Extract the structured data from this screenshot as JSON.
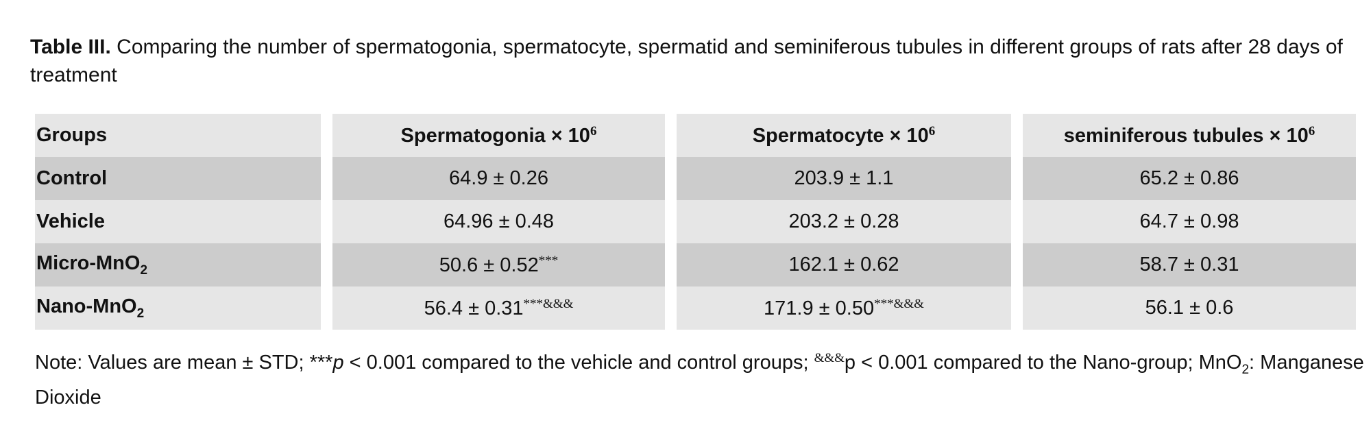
{
  "title": [
    {
      "text": "Table III.",
      "style": "bold"
    },
    {
      "text": " Comparing the number of spermatogonia, spermatocyte, spermatid and seminiferous tubules in different groups of rats after 28 days of treatment"
    }
  ],
  "table": {
    "header": [
      [
        {
          "text": "Groups"
        }
      ],
      [
        {
          "text": "Spermatogonia × 10"
        },
        {
          "text": "6",
          "style": "sup"
        }
      ],
      [
        {
          "text": "Spermatocyte × 10"
        },
        {
          "text": "6",
          "style": "sup"
        }
      ],
      [
        {
          "text": "seminiferous tubules × 10"
        },
        {
          "text": "6",
          "style": "sup"
        }
      ]
    ],
    "rows": [
      [
        [
          {
            "text": "Control"
          }
        ],
        [
          {
            "text": "64.9 ± 0.26"
          }
        ],
        [
          {
            "text": "203.9 ± 1.1"
          }
        ],
        [
          {
            "text": "65.2 ± 0.86"
          }
        ]
      ],
      [
        [
          {
            "text": "Vehicle"
          }
        ],
        [
          {
            "text": "64.96 ± 0.48"
          }
        ],
        [
          {
            "text": "203.2 ± 0.28"
          }
        ],
        [
          {
            "text": "64.7 ± 0.98"
          }
        ]
      ],
      [
        [
          {
            "text": "Micro-MnO"
          },
          {
            "text": "2",
            "style": "sub"
          }
        ],
        [
          {
            "text": "50.6 ± 0.52"
          },
          {
            "text": "***",
            "style": "sup"
          }
        ],
        [
          {
            "text": "162.1 ± 0.62"
          }
        ],
        [
          {
            "text": "58.7 ± 0.31"
          }
        ]
      ],
      [
        [
          {
            "text": "Nano-MnO"
          },
          {
            "text": "2",
            "style": "sub"
          }
        ],
        [
          {
            "text": "56.4 ± 0.31"
          },
          {
            "text": "***&&&",
            "style": "sup"
          }
        ],
        [
          {
            "text": "171.9 ± 0.50"
          },
          {
            "text": "***&&&",
            "style": "sup"
          }
        ],
        [
          {
            "text": "56.1 ± 0.6"
          }
        ]
      ]
    ]
  },
  "note": [
    {
      "text": "Note: Values are mean ± STD; ***"
    },
    {
      "text": "p",
      "style": "italic"
    },
    {
      "text": " < 0.001 compared to the vehicle and control groups; "
    },
    {
      "text": "&&&",
      "style": "sup"
    },
    {
      "text": "p < 0.001 compared to the Nano-group; MnO"
    },
    {
      "text": "2",
      "style": "sub"
    },
    {
      "text": ": Manganese Dioxide"
    }
  ]
}
